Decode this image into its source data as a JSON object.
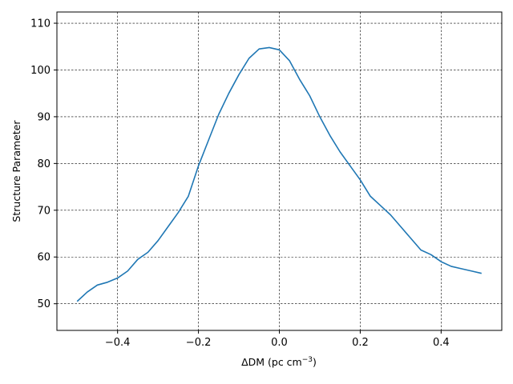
{
  "chart_data": {
    "type": "line",
    "title": "",
    "xlabel": "ΔDM (pc cm",
    "xlabel_unit_exponent": "−3",
    "xlabel_close": ")",
    "ylabel": "Structure Parameter",
    "xlim": [
      -0.55,
      0.55
    ],
    "ylim": [
      44.3,
      112.4
    ],
    "xticks": [
      -0.4,
      -0.2,
      0.0,
      0.2,
      0.4
    ],
    "xtick_labels": [
      "−0.4",
      "−0.2",
      "0.0",
      "0.2",
      "0.4"
    ],
    "yticks": [
      50,
      60,
      70,
      80,
      90,
      100,
      110
    ],
    "ytick_labels": [
      "50",
      "60",
      "70",
      "80",
      "90",
      "100",
      "110"
    ],
    "grid": true,
    "grid_style": "dashed",
    "line_color": "#1f77b4",
    "series": [
      {
        "x": [
          -0.5,
          -0.475,
          -0.45,
          -0.425,
          -0.4,
          -0.375,
          -0.35,
          -0.325,
          -0.3,
          -0.275,
          -0.25,
          -0.225,
          -0.2,
          -0.175,
          -0.15,
          -0.125,
          -0.1,
          -0.075,
          -0.05,
          -0.025,
          0.0,
          0.025,
          0.05,
          0.075,
          0.1,
          0.125,
          0.15,
          0.175,
          0.2,
          0.225,
          0.25,
          0.275,
          0.3,
          0.325,
          0.35,
          0.375,
          0.4,
          0.425,
          0.45,
          0.475,
          0.5
        ],
        "y": [
          50.5,
          52.5,
          54.0,
          54.6,
          55.5,
          57.0,
          59.5,
          61.0,
          63.5,
          66.5,
          69.5,
          73.0,
          79.5,
          85.0,
          90.5,
          95.0,
          99.0,
          102.5,
          104.5,
          104.8,
          104.3,
          102.0,
          98.0,
          94.5,
          90.0,
          86.0,
          82.5,
          79.5,
          76.5,
          73.0,
          71.0,
          69.0,
          66.5,
          64.0,
          61.5,
          60.5,
          59.0,
          58.0,
          57.5,
          57.0,
          56.5
        ]
      }
    ]
  }
}
